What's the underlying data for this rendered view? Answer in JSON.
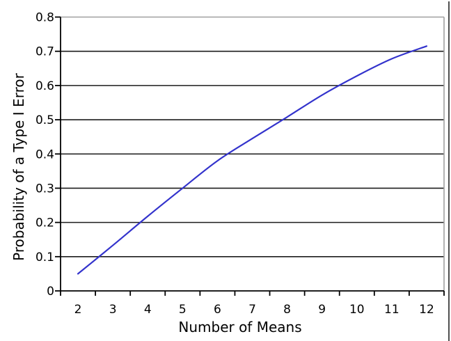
{
  "chart_data": {
    "type": "line",
    "title": "",
    "xlabel": "Number of Means",
    "ylabel": "Probability of a Type I Error",
    "x": [
      2,
      3,
      4,
      5,
      6,
      7,
      8,
      9,
      10,
      11,
      12
    ],
    "x_tick_labels": [
      "2",
      "3",
      "4",
      "5",
      "6",
      "7",
      "8",
      "9",
      "10",
      "11",
      "12"
    ],
    "series": [
      {
        "name": "Probability of a Type I Error",
        "color": "#3333cc",
        "values": [
          0.05,
          0.133,
          0.218,
          0.3,
          0.38,
          0.445,
          0.508,
          0.572,
          0.628,
          0.678,
          0.715
        ]
      }
    ],
    "ylim": [
      0,
      0.8
    ],
    "y_ticks": [
      0,
      0.1,
      0.2,
      0.3,
      0.4,
      0.5,
      0.6,
      0.7,
      0.8
    ],
    "y_tick_labels": [
      "0",
      "0.1",
      "0.2",
      "0.3",
      "0.4",
      "0.5",
      "0.6",
      "0.7",
      "0.8"
    ],
    "grid": "horizontal",
    "legend": "none"
  },
  "colors": {
    "background": "#ffffff",
    "gridline": "#1c1c1c",
    "axis": "#000000",
    "frame": "#a0a0a0",
    "tick": "#000000",
    "text": "#000000",
    "page_border": "#4f4f4f"
  }
}
